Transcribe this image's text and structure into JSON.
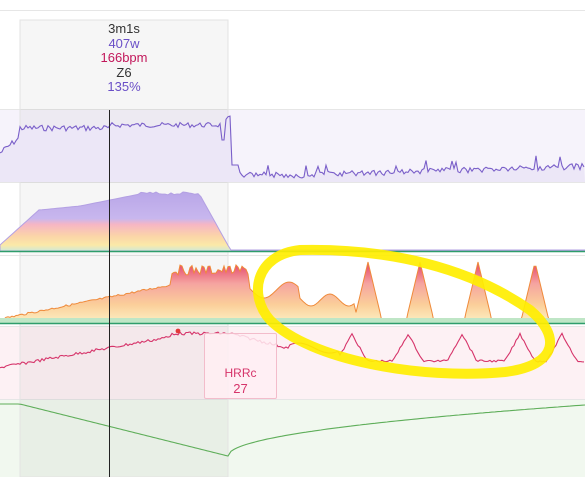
{
  "tooltip": {
    "time": "3m1s",
    "power": "407w",
    "heart_rate": "166bpm",
    "zone": "Z6",
    "percent": "135%",
    "colors": {
      "time": "#333333",
      "power": "#6a4fc7",
      "heart_rate": "#c2185b",
      "zone": "#333333",
      "percent": "#6a4fc7"
    }
  },
  "hrrc": {
    "label": "HRRc",
    "value": "27"
  },
  "colors": {
    "power_line": "#7a5fc9",
    "power_fill": "#ece7f7",
    "zone_green": "#2e9d6b",
    "hr_line": "#d6346a",
    "cadence_line": "#5fae5a",
    "highlight": "#ffee00",
    "cursor": "#222222"
  }
}
